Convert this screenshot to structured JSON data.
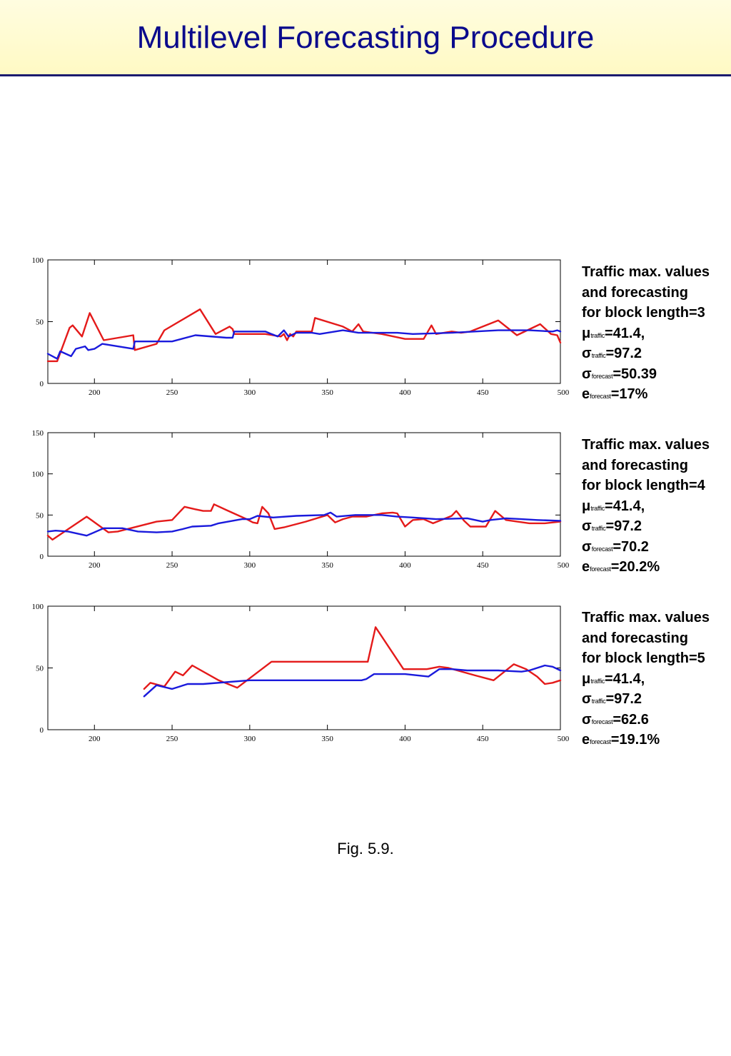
{
  "page": {
    "title": "Multilevel Forecasting Procedure",
    "caption": "Fig. 5.9."
  },
  "colors": {
    "traffic": "#e41a1a",
    "forecast": "#1a1adc",
    "title": "#0a0a8c"
  },
  "panels": [
    {
      "stats": {
        "heading_lines": [
          "Traffic max. values",
          "and forecasting",
          "for block length=3"
        ],
        "mu_symbol": "μ",
        "mu_sub": "traffic",
        "mu_value": "=41.4,",
        "sigma_t_symbol": "σ",
        "sigma_t_sub": "traffic",
        "sigma_t_value": "=97.2",
        "sigma_f_symbol": "σ",
        "sigma_f_sub": "forecast",
        "sigma_f_value": "=50.39",
        "e_symbol": "e",
        "e_sub": "forecast",
        "e_value": "=17%"
      }
    },
    {
      "stats": {
        "heading_lines": [
          "Traffic max. values",
          "and forecasting",
          "for block length=4"
        ],
        "mu_symbol": "μ",
        "mu_sub": "traffic",
        "mu_value": "=41.4,",
        "sigma_t_symbol": "σ",
        "sigma_t_sub": "traffic",
        "sigma_t_value": "=97.2",
        "sigma_f_symbol": "σ",
        "sigma_f_sub": "forecast",
        "sigma_f_value": "=70.2",
        "e_symbol": "e",
        "e_sub": "forecast",
        "e_value": "=20.2%"
      }
    },
    {
      "stats": {
        "heading_lines": [
          "Traffic max. values",
          "and forecasting",
          "for block length=5"
        ],
        "mu_symbol": "μ",
        "mu_sub": "traffic",
        "mu_value": "=41.4,",
        "sigma_t_symbol": "σ",
        "sigma_t_sub": "traffic",
        "sigma_t_value": "=97.2",
        "sigma_f_symbol": "σ",
        "sigma_f_sub": "forecast",
        "sigma_f_value": "=62.6",
        "e_symbol": "e",
        "e_sub": "forecast",
        "e_value": "=19.1%"
      }
    }
  ],
  "chart_data": [
    {
      "type": "line",
      "xlim": [
        170,
        500
      ],
      "ylim": [
        0,
        100
      ],
      "x_ticks": [
        200,
        250,
        300,
        350,
        400,
        450,
        500
      ],
      "y_ticks": [
        0,
        50,
        100
      ],
      "grid": false,
      "series": [
        {
          "color": "#e41a1a",
          "points": [
            [
              170,
              18
            ],
            [
              176,
              18
            ],
            [
              184,
              45
            ],
            [
              186,
              47
            ],
            [
              192,
              38
            ],
            [
              197,
              57
            ],
            [
              206,
              35
            ],
            [
              225,
              39
            ],
            [
              226,
              27
            ],
            [
              240,
              32
            ],
            [
              245,
              43
            ],
            [
              268,
              60
            ],
            [
              278,
              40
            ],
            [
              287,
              46
            ],
            [
              289,
              44
            ],
            [
              290,
              40
            ],
            [
              310,
              40
            ],
            [
              320,
              38
            ],
            [
              322,
              40
            ],
            [
              324,
              35
            ],
            [
              326,
              40
            ],
            [
              328,
              38
            ],
            [
              330,
              42
            ],
            [
              340,
              42
            ],
            [
              342,
              53
            ],
            [
              360,
              46
            ],
            [
              366,
              42
            ],
            [
              370,
              48
            ],
            [
              373,
              42
            ],
            [
              385,
              40
            ],
            [
              400,
              36
            ],
            [
              412,
              36
            ],
            [
              417,
              47
            ],
            [
              420,
              40
            ],
            [
              430,
              42
            ],
            [
              436,
              41
            ],
            [
              442,
              42
            ],
            [
              460,
              51
            ],
            [
              472,
              39
            ],
            [
              487,
              48
            ],
            [
              494,
              40
            ],
            [
              498,
              39
            ],
            [
              500,
              33
            ]
          ]
        },
        {
          "color": "#1a1adc",
          "points": [
            [
              170,
              24
            ],
            [
              176,
              20
            ],
            [
              178,
              26
            ],
            [
              185,
              22
            ],
            [
              188,
              28
            ],
            [
              194,
              30
            ],
            [
              196,
              27
            ],
            [
              200,
              28
            ],
            [
              205,
              32
            ],
            [
              225,
              28
            ],
            [
              226,
              34
            ],
            [
              250,
              34
            ],
            [
              265,
              39
            ],
            [
              285,
              37
            ],
            [
              289,
              37
            ],
            [
              290,
              42
            ],
            [
              310,
              42
            ],
            [
              318,
              38
            ],
            [
              322,
              43
            ],
            [
              325,
              38
            ],
            [
              330,
              41
            ],
            [
              340,
              41
            ],
            [
              345,
              40
            ],
            [
              360,
              43
            ],
            [
              370,
              41
            ],
            [
              385,
              41
            ],
            [
              395,
              41
            ],
            [
              405,
              40
            ],
            [
              430,
              41
            ],
            [
              445,
              42
            ],
            [
              460,
              43
            ],
            [
              480,
              43
            ],
            [
              495,
              42
            ],
            [
              498,
              43
            ],
            [
              500,
              42
            ]
          ]
        }
      ]
    },
    {
      "type": "line",
      "xlim": [
        170,
        500
      ],
      "ylim": [
        0,
        150
      ],
      "x_ticks": [
        200,
        250,
        300,
        350,
        400,
        450,
        500
      ],
      "y_ticks": [
        0,
        50,
        100,
        150
      ],
      "grid": false,
      "series": [
        {
          "color": "#e41a1a",
          "points": [
            [
              170,
              25
            ],
            [
              173,
              20
            ],
            [
              195,
              48
            ],
            [
              209,
              29
            ],
            [
              215,
              30
            ],
            [
              240,
              42
            ],
            [
              245,
              43
            ],
            [
              250,
              44
            ],
            [
              258,
              60
            ],
            [
              265,
              57
            ],
            [
              270,
              55
            ],
            [
              275,
              55
            ],
            [
              277,
              63
            ],
            [
              285,
              56
            ],
            [
              298,
              45
            ],
            [
              302,
              41
            ],
            [
              305,
              40
            ],
            [
              308,
              60
            ],
            [
              312,
              52
            ],
            [
              316,
              33
            ],
            [
              322,
              35
            ],
            [
              336,
              42
            ],
            [
              350,
              50
            ],
            [
              355,
              41
            ],
            [
              360,
              45
            ],
            [
              366,
              48
            ],
            [
              375,
              48
            ],
            [
              385,
              52
            ],
            [
              392,
              53
            ],
            [
              395,
              52
            ],
            [
              400,
              36
            ],
            [
              405,
              44
            ],
            [
              412,
              45
            ],
            [
              418,
              40
            ],
            [
              430,
              49
            ],
            [
              433,
              55
            ],
            [
              438,
              43
            ],
            [
              442,
              36
            ],
            [
              452,
              36
            ],
            [
              458,
              55
            ],
            [
              465,
              44
            ],
            [
              480,
              40
            ],
            [
              490,
              40
            ],
            [
              500,
              42
            ]
          ]
        },
        {
          "color": "#1a1adc",
          "points": [
            [
              170,
              30
            ],
            [
              175,
              31
            ],
            [
              183,
              30
            ],
            [
              195,
              25
            ],
            [
              206,
              34
            ],
            [
              218,
              34
            ],
            [
              228,
              30
            ],
            [
              240,
              29
            ],
            [
              250,
              30
            ],
            [
              257,
              33
            ],
            [
              263,
              36
            ],
            [
              275,
              37
            ],
            [
              280,
              40
            ],
            [
              295,
              45
            ],
            [
              300,
              45
            ],
            [
              305,
              49
            ],
            [
              315,
              47
            ],
            [
              330,
              49
            ],
            [
              348,
              50
            ],
            [
              352,
              53
            ],
            [
              356,
              48
            ],
            [
              368,
              50
            ],
            [
              376,
              50
            ],
            [
              385,
              50
            ],
            [
              395,
              48
            ],
            [
              405,
              47
            ],
            [
              420,
              45
            ],
            [
              440,
              46
            ],
            [
              450,
              42
            ],
            [
              455,
              44
            ],
            [
              465,
              46
            ],
            [
              475,
              45
            ],
            [
              485,
              44
            ],
            [
              500,
              43
            ]
          ]
        }
      ]
    },
    {
      "type": "line",
      "xlim": [
        170,
        500
      ],
      "ylim": [
        0,
        100
      ],
      "x_ticks": [
        200,
        250,
        300,
        350,
        400,
        450,
        500
      ],
      "y_ticks": [
        0,
        50,
        100
      ],
      "grid": false,
      "series": [
        {
          "color": "#e41a1a",
          "points": [
            [
              232,
              33
            ],
            [
              236,
              38
            ],
            [
              245,
              35
            ],
            [
              252,
              47
            ],
            [
              257,
              44
            ],
            [
              263,
              52
            ],
            [
              280,
              40
            ],
            [
              292,
              34
            ],
            [
              314,
              55
            ],
            [
              376,
              55
            ],
            [
              381,
              83
            ],
            [
              399,
              49
            ],
            [
              414,
              49
            ],
            [
              422,
              51
            ],
            [
              428,
              50
            ],
            [
              445,
              44
            ],
            [
              457,
              40
            ],
            [
              470,
              53
            ],
            [
              478,
              49
            ],
            [
              485,
              43
            ],
            [
              490,
              37
            ],
            [
              495,
              38
            ],
            [
              500,
              40
            ]
          ]
        },
        {
          "color": "#1a1adc",
          "points": [
            [
              232,
              27
            ],
            [
              240,
              36
            ],
            [
              250,
              33
            ],
            [
              260,
              37
            ],
            [
              270,
              37
            ],
            [
              300,
              40
            ],
            [
              330,
              40
            ],
            [
              372,
              40
            ],
            [
              375,
              41
            ],
            [
              380,
              45
            ],
            [
              400,
              45
            ],
            [
              415,
              43
            ],
            [
              422,
              49
            ],
            [
              430,
              49
            ],
            [
              440,
              48
            ],
            [
              460,
              48
            ],
            [
              475,
              47
            ],
            [
              480,
              48
            ],
            [
              490,
              52
            ],
            [
              495,
              51
            ],
            [
              500,
              48
            ]
          ]
        }
      ]
    }
  ]
}
